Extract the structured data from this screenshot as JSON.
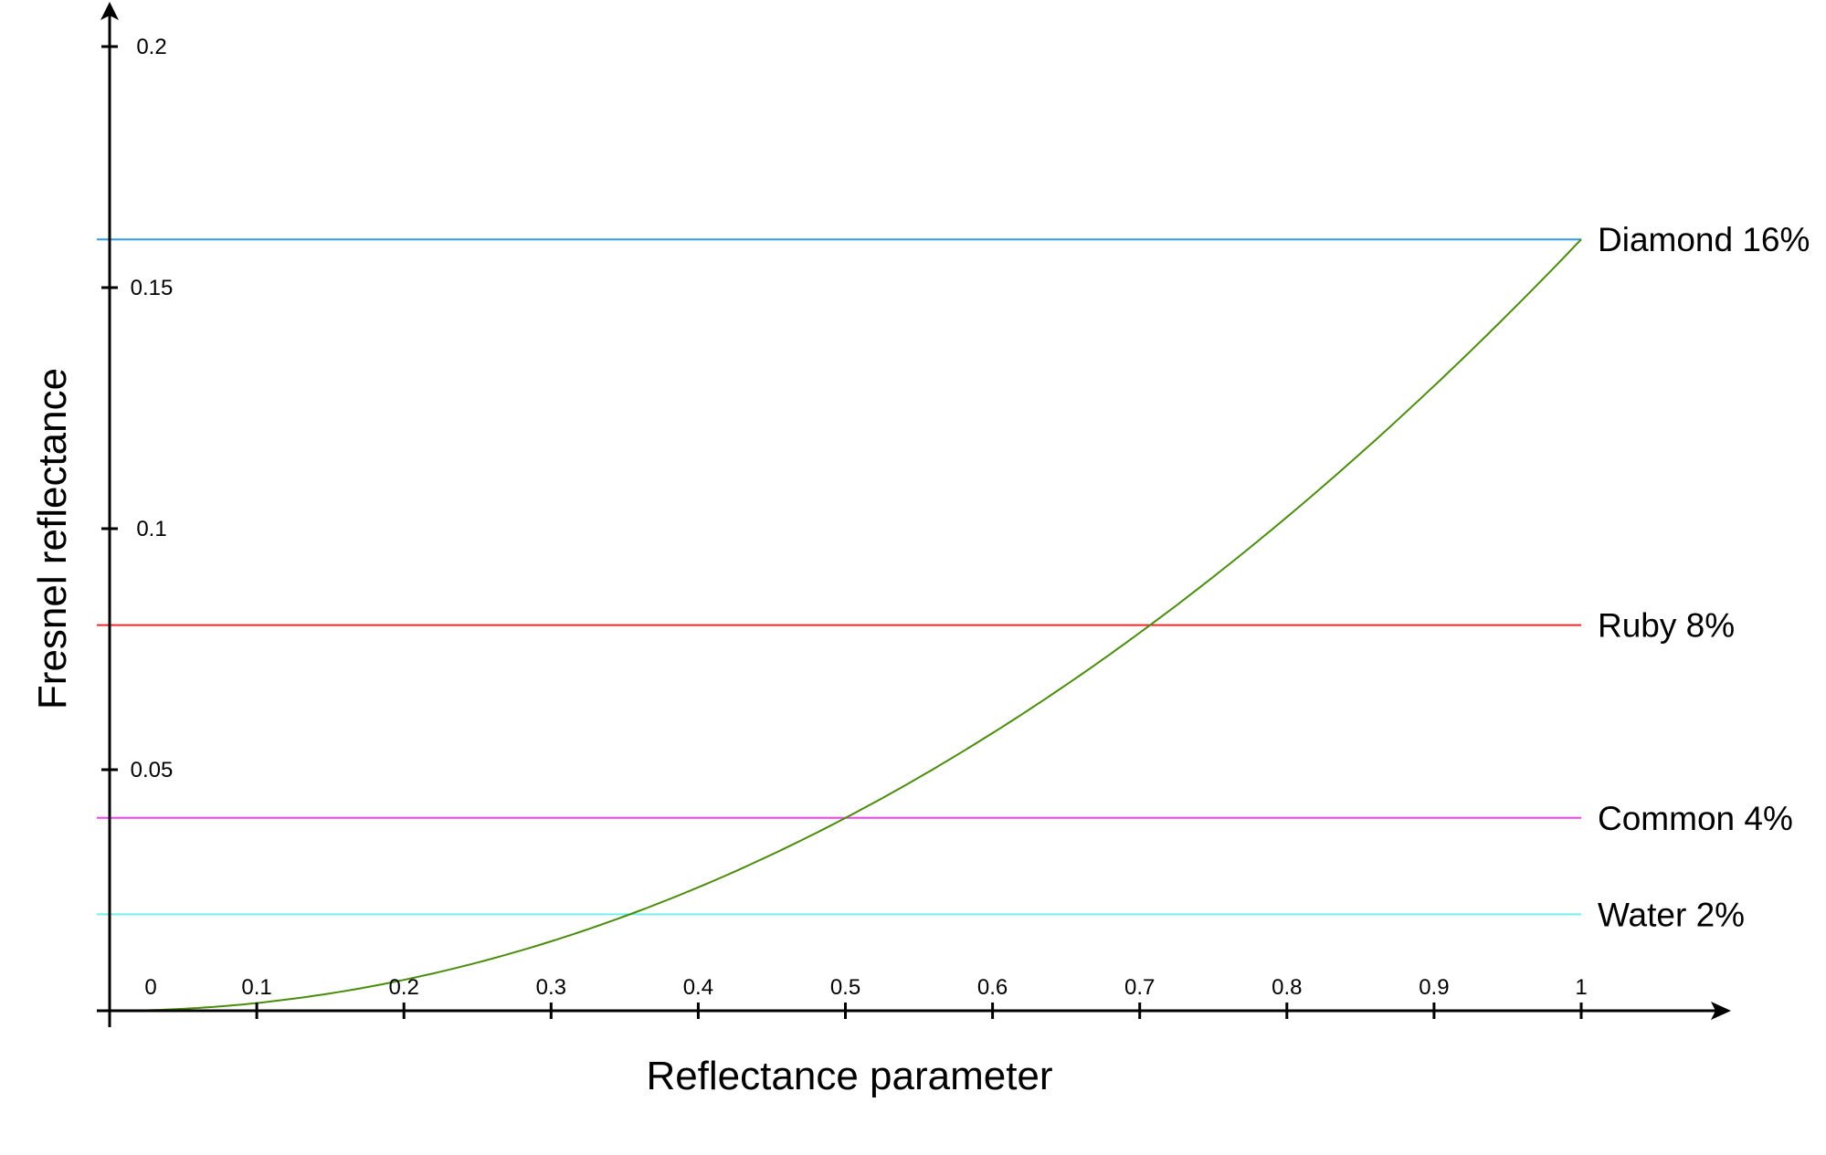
{
  "chart_data": {
    "type": "line",
    "xlabel": "Reflectance parameter",
    "ylabel": "Fresnel reflectance",
    "xlim": [
      0,
      1
    ],
    "ylim": [
      0,
      0.2
    ],
    "x_ticks": [
      "0",
      "0.1",
      "0.2",
      "0.3",
      "0.4",
      "0.5",
      "0.6",
      "0.7",
      "0.8",
      "0.9",
      "1"
    ],
    "y_ticks": [
      "0.05",
      "0.1",
      "0.15",
      "0.2"
    ],
    "grid": false,
    "curve": {
      "formula": "y = 0.16 * x^2",
      "color": "#4a8c0c",
      "x": [
        0,
        0.1,
        0.2,
        0.3,
        0.4,
        0.5,
        0.6,
        0.7,
        0.8,
        0.9,
        1.0
      ],
      "y": [
        0,
        0.0016,
        0.0064,
        0.0144,
        0.0256,
        0.04,
        0.0576,
        0.0784,
        0.1024,
        0.1296,
        0.16
      ]
    },
    "reference_lines": [
      {
        "label": "Diamond 16%",
        "value": 0.16,
        "color": "#2f9af0"
      },
      {
        "label": "Ruby 8%",
        "value": 0.08,
        "color": "#f02828"
      },
      {
        "label": "Common 4%",
        "value": 0.04,
        "color": "#f040f0"
      },
      {
        "label": "Water 2%",
        "value": 0.02,
        "color": "#70f0f0"
      }
    ]
  }
}
